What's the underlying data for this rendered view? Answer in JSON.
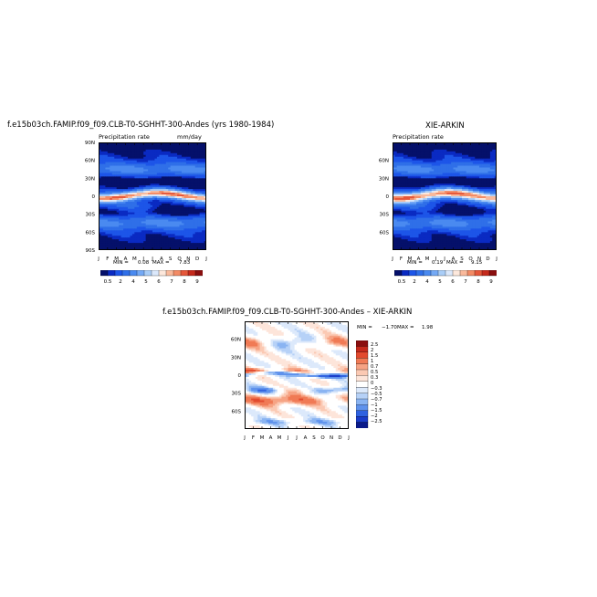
{
  "colors": {
    "palette_main": [
      "#05106a",
      "#0a2ac2",
      "#1d55e8",
      "#2f6fe8",
      "#4a8af0",
      "#74a9f5",
      "#a9cdf7",
      "#dbe8fb",
      "#fde8dc",
      "#f9b99b",
      "#f38b65",
      "#e5573a",
      "#c52a1c",
      "#8a0f0f"
    ],
    "palette_diff": [
      "#8a0f0f",
      "#c52a1c",
      "#e24a2e",
      "#f07a55",
      "#f6a384",
      "#fbc9b3",
      "#fde5da",
      "#ffffff",
      "#dce9fb",
      "#b6d1f7",
      "#8ab4f2",
      "#5f92ec",
      "#2f62e0",
      "#1a3cc9",
      "#0a1a8a"
    ]
  },
  "chart_data": [
    {
      "type": "heatmap",
      "title": "f.e15b03ch.FAMIP.f09_f09.CLB-T0-SGHHT-300-Andes (yrs 1980-1984)",
      "subtitle_left": "Precipitation rate",
      "subtitle_right": "mm/day",
      "x_ticks": [
        "J",
        "F",
        "M",
        "A",
        "M",
        "J",
        "J",
        "A",
        "S",
        "O",
        "N",
        "D",
        "J"
      ],
      "y_ticks": [
        "90N",
        "60N",
        "30N",
        "0",
        "30S",
        "60S",
        "90S"
      ],
      "min_text": "MIN =",
      "min_value": "0.08",
      "max_text": "MAX =",
      "max_value": "7.83",
      "colorbar_labels": [
        "0.5",
        "2",
        "4",
        "5",
        "6",
        "7",
        "8",
        "9"
      ]
    },
    {
      "type": "heatmap",
      "title": "XIE-ARKIN",
      "subtitle_left": "Precipitation rate",
      "x_ticks": [
        "J",
        "F",
        "M",
        "A",
        "M",
        "J",
        "J",
        "A",
        "S",
        "O",
        "N",
        "D",
        "J"
      ],
      "y_ticks": [
        "60N",
        "30N",
        "0",
        "30S",
        "60S"
      ],
      "min_text": "MIN =",
      "min_value": "0.19",
      "max_text": "MAX =",
      "max_value": "9.15",
      "colorbar_labels": [
        "0.5",
        "2",
        "4",
        "5",
        "6",
        "7",
        "8",
        "9"
      ]
    },
    {
      "type": "heatmap",
      "title": "f.e15b03ch.FAMIP.f09_f09.CLB-T0-SGHHT-300-Andes  –  XIE-ARKIN",
      "x_ticks": [
        "J",
        "F",
        "M",
        "A",
        "M",
        "J",
        "J",
        "A",
        "S",
        "O",
        "N",
        "D",
        "J"
      ],
      "y_ticks": [
        "60N",
        "30N",
        "0",
        "30S",
        "60S"
      ],
      "min_text": "MIN =",
      "min_value": "−1.70",
      "max_text": "MAX =",
      "max_value": "1.98",
      "colorbar_labels": [
        "2.5",
        "2",
        "1.5",
        "1",
        "0.7",
        "0.5",
        "0.3",
        "0",
        "−0.3",
        "−0.5",
        "−0.7",
        "−1",
        "−1.5",
        "−2",
        "−2.5"
      ]
    }
  ]
}
